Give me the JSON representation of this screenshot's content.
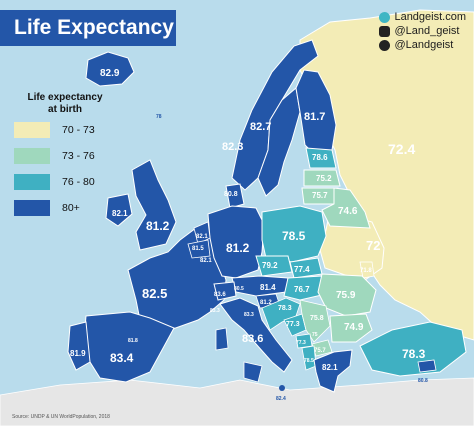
{
  "title": "Life Expectancy",
  "credits": {
    "website": "Landgeist.com",
    "instagram": "@Land_geist",
    "twitter": "@Landgeist"
  },
  "legend": {
    "title_line1": "Life expectancy",
    "title_line2": "at birth",
    "items": [
      {
        "label": "70 - 73",
        "color": "#f3ecb6"
      },
      {
        "label": "73 - 76",
        "color": "#9fd8bd"
      },
      {
        "label": "76 - 80",
        "color": "#3fb0c2"
      },
      {
        "label": "80+",
        "color": "#2356a8"
      }
    ]
  },
  "source": "Source: UNDP & UN WorldPopulation, 2018",
  "colors": {
    "sea": "#b9dcec",
    "land_outside": "#e8e8e8",
    "border": "#ffffff"
  },
  "values": [
    {
      "country": "Iceland",
      "label": "82.9"
    },
    {
      "country": "Norway",
      "label": "82.7"
    },
    {
      "country": "Sweden",
      "label": "82.3"
    },
    {
      "country": "Finland",
      "label": "81.7"
    },
    {
      "country": "Russia",
      "label": "72.4"
    },
    {
      "country": "Estonia",
      "label": "78.6"
    },
    {
      "country": "Latvia",
      "label": "75.2"
    },
    {
      "country": "Lithuania",
      "label": "75.7"
    },
    {
      "country": "Belarus",
      "label": "74.6"
    },
    {
      "country": "Ukraine",
      "label": "72"
    },
    {
      "country": "Moldova",
      "label": "71.8"
    },
    {
      "country": "Ireland",
      "label": "82.1"
    },
    {
      "country": "United Kingdom",
      "label": "81.2"
    },
    {
      "country": "Denmark",
      "label": "80.8"
    },
    {
      "country": "Netherlands",
      "label": "82.1"
    },
    {
      "country": "Belgium",
      "label": "81.5"
    },
    {
      "country": "Luxembourg",
      "label": "82.1"
    },
    {
      "country": "Germany",
      "label": "81.2"
    },
    {
      "country": "Poland",
      "label": "78.5"
    },
    {
      "country": "Czech Republic",
      "label": "79.2"
    },
    {
      "country": "Slovakia",
      "label": "77.4"
    },
    {
      "country": "Austria",
      "label": "81.4"
    },
    {
      "country": "Hungary",
      "label": "76.7"
    },
    {
      "country": "Switzerland",
      "label": "83.6"
    },
    {
      "country": "Liechtenstein",
      "label": "80.5"
    },
    {
      "country": "France",
      "label": "82.5"
    },
    {
      "country": "Slovenia",
      "label": "81.2"
    },
    {
      "country": "Croatia",
      "label": "78.3"
    },
    {
      "country": "Bosnia and Herzegovina",
      "label": "77.3"
    },
    {
      "country": "Serbia",
      "label": "75.8"
    },
    {
      "country": "Montenegro",
      "label": "77.3"
    },
    {
      "country": "Romania",
      "label": "75.9"
    },
    {
      "country": "Bulgaria",
      "label": "74.9"
    },
    {
      "country": "North Macedonia",
      "label": "75.7"
    },
    {
      "country": "Albania",
      "label": "78.5"
    },
    {
      "country": "Greece",
      "label": "82.1"
    },
    {
      "country": "Turkey",
      "label": "78.3"
    },
    {
      "country": "Italy",
      "label": "83.6"
    },
    {
      "country": "Spain",
      "label": "83.4"
    },
    {
      "country": "Portugal",
      "label": "81.9"
    },
    {
      "country": "Andorra",
      "label": "81.8"
    },
    {
      "country": "Monaco",
      "label": "83.3"
    },
    {
      "country": "San Marino",
      "label": "83.3"
    },
    {
      "country": "Malta",
      "label": "82.4"
    },
    {
      "country": "Cyprus",
      "label": "80.8"
    },
    {
      "country": "Kosovo",
      "label": "75"
    },
    {
      "country": "Faroe Islands",
      "label": "78"
    }
  ]
}
